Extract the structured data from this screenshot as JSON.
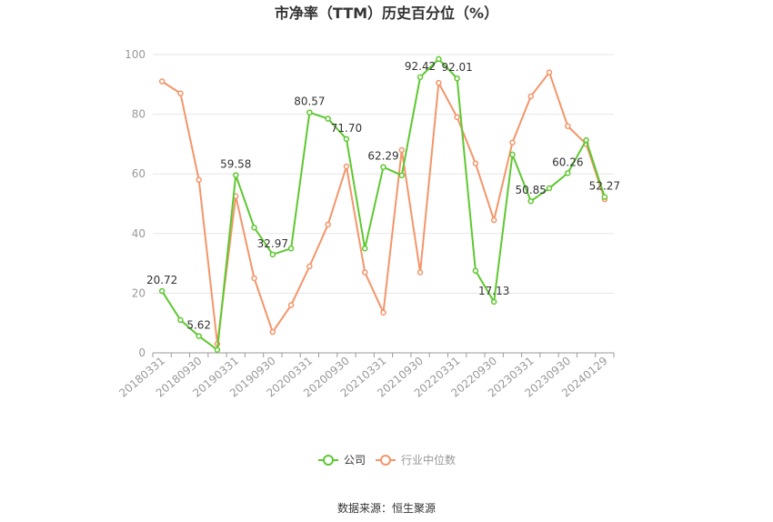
{
  "chart_data": {
    "type": "line",
    "title": "市净率（TTM）历史百分位（%）",
    "xlabel": "",
    "ylabel": "",
    "ylim": [
      0,
      100
    ],
    "yticks": [
      0,
      20,
      40,
      60,
      80,
      100
    ],
    "grid": true,
    "legend_position": "bottom",
    "x": [
      "20180331",
      "20180630",
      "20180930",
      "20181231",
      "20190331",
      "20190630",
      "20190930",
      "20191231",
      "20200331",
      "20200630",
      "20200930",
      "20201231",
      "20210331",
      "20210630",
      "20210930",
      "20211231",
      "20220331",
      "20220630",
      "20220930",
      "20221231",
      "20230331",
      "20230630",
      "20230930",
      "20231231",
      "20240129"
    ],
    "xtick_labels": [
      "20180331",
      "20180930",
      "20190331",
      "20190930",
      "20200331",
      "20200930",
      "20210331",
      "20210930",
      "20220331",
      "20220930",
      "20230331",
      "20230930",
      "20240129"
    ],
    "series": [
      {
        "name": "公司",
        "color": "#5ec830",
        "values": [
          20.72,
          11.0,
          5.62,
          1.0,
          59.58,
          42.0,
          32.97,
          35.0,
          80.57,
          78.5,
          71.7,
          35.0,
          62.29,
          59.5,
          92.42,
          98.5,
          92.01,
          27.5,
          17.13,
          66.5,
          50.85,
          55.2,
          60.26,
          71.3,
          52.27
        ],
        "labels": {
          "0": "20.72",
          "2": "5.62",
          "4": "59.58",
          "6": "32.97",
          "8": "80.57",
          "10": "71.70",
          "12": "62.29",
          "14": "92.42",
          "16": "92.01",
          "18": "17.13",
          "20": "50.85",
          "22": "60.26",
          "24": "52.27"
        }
      },
      {
        "name": "行业中位数",
        "color": "#f4956a",
        "values": [
          91.0,
          87.0,
          58.0,
          3.0,
          52.5,
          25.0,
          7.0,
          16.0,
          29.0,
          43.0,
          62.5,
          27.0,
          13.5,
          68.0,
          27.0,
          90.5,
          79.0,
          63.5,
          44.5,
          70.5,
          86.0,
          94.0,
          76.0,
          70.0,
          51.5
        ]
      }
    ]
  },
  "source_text": "数据来源：恒生聚源"
}
